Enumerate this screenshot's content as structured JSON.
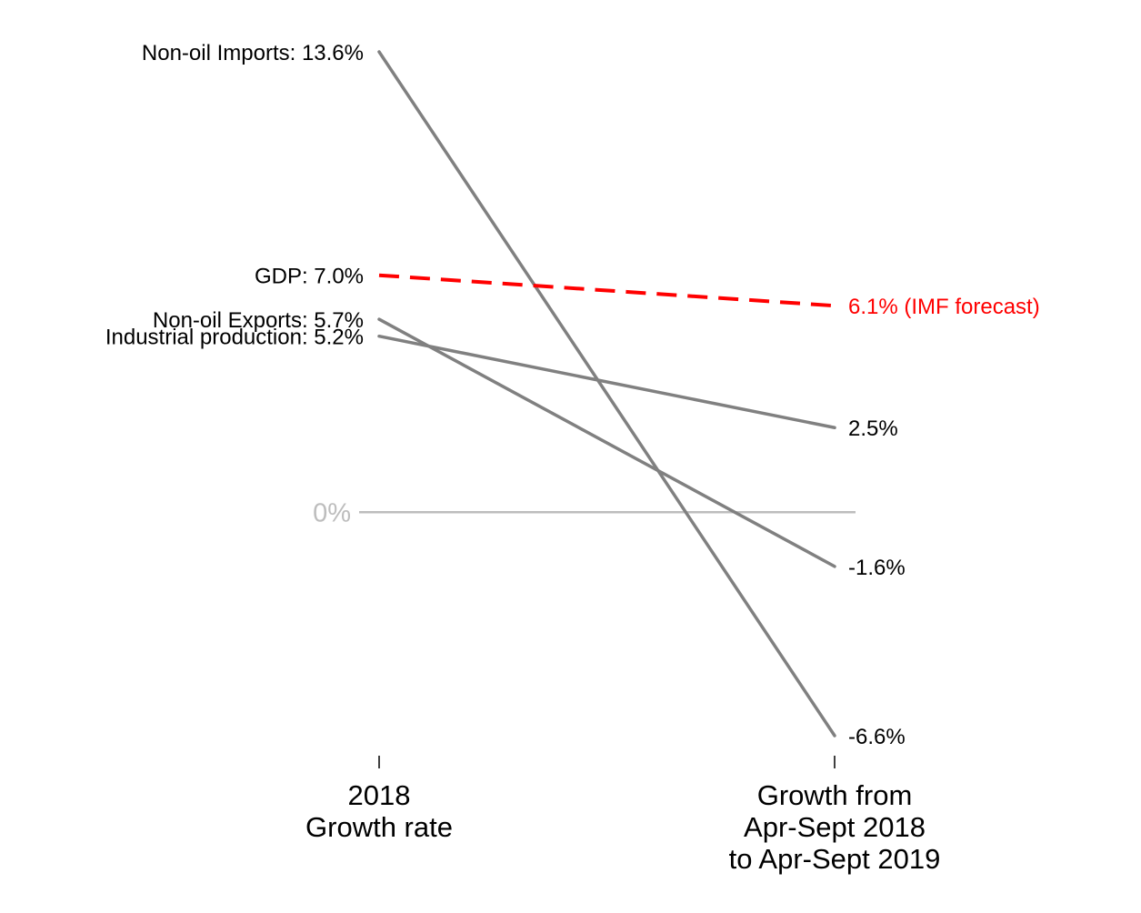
{
  "chart_data": {
    "type": "line",
    "subtype": "slope",
    "title": "",
    "x_categories": [
      [
        "2018",
        "Growth rate"
      ],
      [
        "Growth from",
        "Apr-Sept 2018",
        "to Apr-Sept 2019"
      ]
    ],
    "ylim": [
      -6.6,
      13.6
    ],
    "zero_line": {
      "value": 0,
      "label": "0%",
      "color": "#bdbdbd"
    },
    "grid": false,
    "series": [
      {
        "name": "Non-oil Imports",
        "values": [
          13.6,
          -6.6
        ],
        "left_label": "Non-oil Imports: 13.6%",
        "right_label": "-6.6%",
        "color": "#808080",
        "dashed": false,
        "label_color": "#000000"
      },
      {
        "name": "GDP",
        "values": [
          7.0,
          6.1
        ],
        "left_label": "GDP: 7.0%",
        "right_label": "6.1% (IMF forecast)",
        "color": "#ff0000",
        "dashed": true,
        "label_color": "#ff0000"
      },
      {
        "name": "Non-oil Exports",
        "values": [
          5.7,
          -1.6
        ],
        "left_label": "Non-oil Exports: 5.7%",
        "right_label": "-1.6%",
        "color": "#808080",
        "dashed": false,
        "label_color": "#000000"
      },
      {
        "name": "Industrial production",
        "values": [
          5.2,
          2.5
        ],
        "left_label": "Industrial production: 5.2%",
        "right_label": "2.5%",
        "color": "#808080",
        "dashed": false,
        "label_color": "#000000"
      }
    ]
  }
}
